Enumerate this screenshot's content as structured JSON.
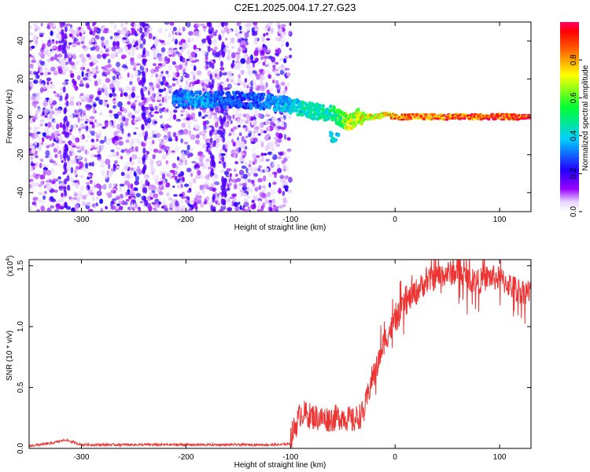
{
  "title": "C2E1.2025.004.17.27.G23",
  "chart_data": [
    {
      "type": "heatmap",
      "xlabel": "Height of straight line (km)",
      "ylabel": "Frequency (Hz)",
      "xlim": [
        -350,
        130
      ],
      "ylim": [
        -50,
        50
      ],
      "xticks": [
        -300,
        -200,
        -100,
        0,
        100
      ],
      "yticks": [
        -40,
        -20,
        0,
        20,
        40
      ],
      "colorbar": {
        "label": "Normalized spectral amplitude",
        "range": [
          0.0,
          1.0
        ],
        "ticks": [
          0.0,
          0.2,
          0.4,
          0.6,
          0.8
        ],
        "tick_labels": [
          "0.0",
          "0.2",
          "0.4",
          "0.6",
          "0.8"
        ]
      },
      "description_points": {
        "ridge": [
          {
            "x": -210,
            "y": 10,
            "v": 0.35
          },
          {
            "x": -190,
            "y": 9,
            "v": 0.4
          },
          {
            "x": -150,
            "y": 9,
            "v": 0.3
          },
          {
            "x": -120,
            "y": 8,
            "v": 0.35
          },
          {
            "x": -100,
            "y": 6,
            "v": 0.45
          },
          {
            "x": -80,
            "y": 3,
            "v": 0.5
          },
          {
            "x": -60,
            "y": 2,
            "v": 0.55
          },
          {
            "x": -45,
            "y": -3,
            "v": 0.75
          },
          {
            "x": -35,
            "y": 0,
            "v": 0.8
          },
          {
            "x": -20,
            "y": 0,
            "v": 0.8
          },
          {
            "x": -10,
            "y": 1,
            "v": 0.85
          },
          {
            "x": 0,
            "y": 0,
            "v": 0.95
          },
          {
            "x": 50,
            "y": 0,
            "v": 1.0
          },
          {
            "x": 130,
            "y": 0,
            "v": 1.0
          }
        ]
      }
    },
    {
      "type": "line",
      "xlabel": "Height of straight line (km)",
      "ylabel": "SNR (10 * v/v)",
      "y_multiplier": "(x10",
      "y_multiplier_exp": "4",
      "y_multiplier_close": ")",
      "xlim": [
        -350,
        130
      ],
      "ylim": [
        0,
        1.55
      ],
      "xticks": [
        -300,
        -200,
        -100,
        0,
        100
      ],
      "yticks": [
        0.0,
        0.5,
        1.0,
        1.5
      ],
      "ytick_labels": [
        "0.0",
        "0.5",
        "1.0",
        "1.5"
      ],
      "color": "#ee3333",
      "series": [
        {
          "x": [
            -350,
            -330,
            -315,
            -300,
            -250,
            -200,
            -150,
            -110,
            -100,
            -90,
            -80,
            -70,
            -60,
            -50,
            -40,
            -30,
            -20,
            -10,
            0,
            10,
            20,
            30,
            40,
            50,
            60,
            70,
            80,
            90,
            100,
            110,
            120,
            130
          ],
          "values": [
            0.02,
            0.04,
            0.07,
            0.03,
            0.03,
            0.03,
            0.03,
            0.03,
            0.04,
            0.25,
            0.22,
            0.2,
            0.2,
            0.22,
            0.18,
            0.25,
            0.6,
            0.9,
            1.05,
            1.2,
            1.3,
            1.38,
            1.42,
            1.45,
            1.45,
            1.4,
            1.38,
            1.42,
            1.4,
            1.35,
            1.3,
            1.3
          ]
        }
      ]
    }
  ]
}
